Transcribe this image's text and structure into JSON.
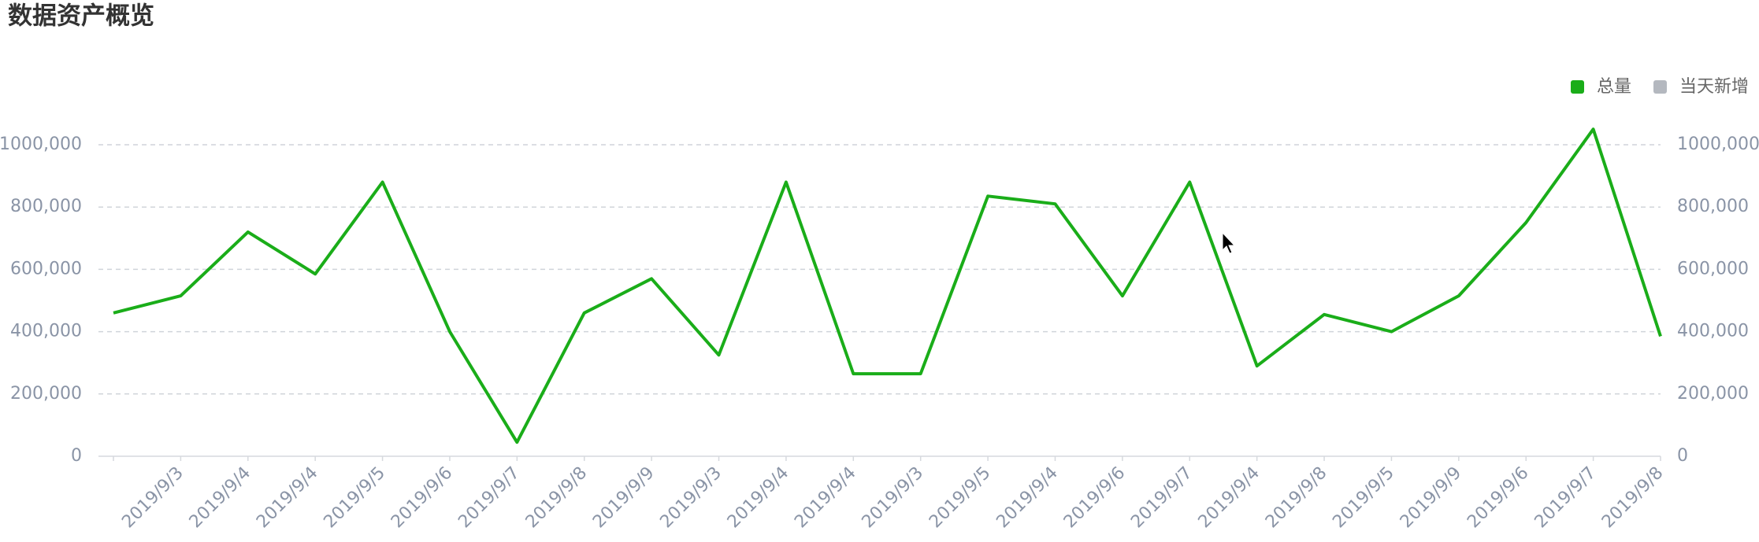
{
  "chart_data": {
    "type": "line",
    "title": "数据资产概览",
    "categories": [
      null,
      "2019/9/3",
      "2019/9/4",
      "2019/9/4",
      "2019/9/5",
      "2019/9/6",
      "2019/9/7",
      "2019/9/8",
      "2019/9/9",
      "2019/9/3",
      "2019/9/4",
      "2019/9/4",
      "2019/9/3",
      "2019/9/5",
      "2019/9/4",
      "2019/9/6",
      "2019/9/7",
      "2019/9/4",
      "2019/9/8",
      "2019/9/5",
      "2019/9/9",
      "2019/9/6",
      "2019/9/7",
      "2019/9/8"
    ],
    "series": [
      {
        "name": "总量",
        "color": "#1aad19",
        "values": [
          460000,
          515000,
          720000,
          585000,
          880000,
          400000,
          45000,
          460000,
          570000,
          325000,
          880000,
          265000,
          265000,
          835000,
          810000,
          515000,
          880000,
          290000,
          455000,
          400000,
          515000,
          750000,
          1050000,
          385000
        ]
      },
      {
        "name": "当天新增",
        "color": "#b4b8bf",
        "values": [
          null,
          null,
          null,
          null,
          null,
          null,
          null,
          null,
          null,
          null,
          null,
          null,
          null,
          null,
          null,
          null,
          null,
          null,
          null,
          null,
          null,
          null,
          null,
          null
        ]
      }
    ],
    "ylim": [
      0,
      1000000
    ],
    "yticks": [
      0,
      {
        "value": 200000,
        "label": "200,000"
      },
      {
        "value": 400000,
        "label": "400,000"
      },
      {
        "value": 600000,
        "label": "600,000"
      },
      {
        "value": 800000,
        "label": "800,000"
      },
      {
        "value": 1000000,
        "label": "1000,000"
      }
    ],
    "grid": true,
    "legend": "top-right"
  }
}
